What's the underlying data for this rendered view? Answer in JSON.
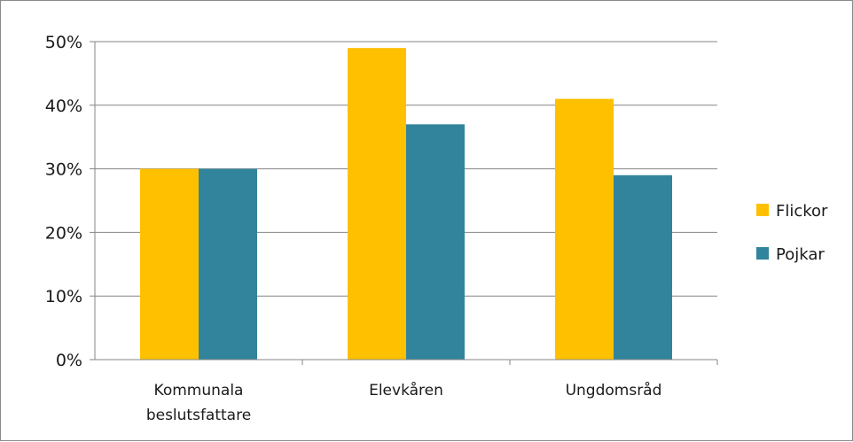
{
  "chart_data": {
    "type": "bar",
    "title": "",
    "xlabel": "",
    "ylabel": "",
    "ylim": [
      0,
      50
    ],
    "yticks": [
      0,
      10,
      20,
      30,
      40,
      50
    ],
    "ytick_labels": [
      "0%",
      "10%",
      "20%",
      "30%",
      "40%",
      "50%"
    ],
    "grid": true,
    "legend_position": "right",
    "categories": [
      [
        "Kommunala",
        "beslutsfattare"
      ],
      [
        "Elevkåren"
      ],
      [
        "Ungdomsråd"
      ]
    ],
    "series": [
      {
        "name": "Flickor",
        "color": "#FFC000",
        "values": [
          30,
          49,
          41
        ]
      },
      {
        "name": "Pojkar",
        "color": "#31849B",
        "values": [
          30,
          37,
          29
        ]
      }
    ]
  }
}
